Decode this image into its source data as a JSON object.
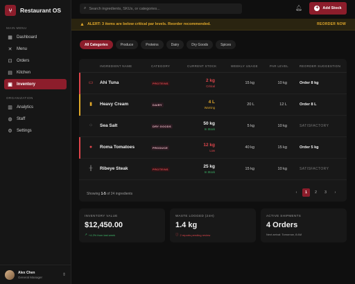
{
  "app": {
    "name": "Restaurant OS"
  },
  "sidebar": {
    "main_menu_label": "MAIN MENU",
    "main_items": [
      {
        "label": "Dashboard",
        "icon": "grid-icon"
      },
      {
        "label": "Menu",
        "icon": "utensils-icon"
      },
      {
        "label": "Orders",
        "icon": "cart-icon"
      },
      {
        "label": "Kitchen",
        "icon": "kitchen-icon"
      },
      {
        "label": "Inventory",
        "icon": "box-icon",
        "active": true
      }
    ],
    "org_label": "ORGANIZATION",
    "org_items": [
      {
        "label": "Analytics",
        "icon": "chart-icon"
      },
      {
        "label": "Staff",
        "icon": "users-icon"
      },
      {
        "label": "Settings",
        "icon": "gear-icon"
      }
    ],
    "user": {
      "name": "Alex Chen",
      "role": "General Manager"
    }
  },
  "topbar": {
    "search_placeholder": "Search ingredients, SKUs, or categories...",
    "add_stock_label": "Add Stock"
  },
  "alert": {
    "text": "ALERT: 3 items are below critical par levels. Reorder recommended.",
    "action": "REORDER NOW"
  },
  "filters": [
    "All Categories",
    "Produce",
    "Proteins",
    "Dairy",
    "Dry Goods",
    "Spices"
  ],
  "table": {
    "headers": [
      "INGREDIENT NAME",
      "CATEGORY",
      "CURRENT STOCK",
      "WEEKLY USAGE",
      "PAR LEVEL",
      "REORDER SUGGESTION"
    ],
    "rows": [
      {
        "name": "Ahi Tuna",
        "category": "PROTEINS",
        "stock": "2 kg",
        "status": "Critical",
        "usage": "15 kg",
        "par": "10 kg",
        "suggestion": "Order 8 kg"
      },
      {
        "name": "Heavy Cream",
        "category": "DAIRY",
        "stock": "4 L",
        "status": "Warning",
        "usage": "20 L",
        "par": "12 L",
        "suggestion": "Order 8 L"
      },
      {
        "name": "Sea Salt",
        "category": "DRY GOODS",
        "stock": "50 kg",
        "status": "In Stock",
        "usage": "5 kg",
        "par": "10 kg",
        "suggestion": "SATISFACTORY"
      },
      {
        "name": "Roma Tomatoes",
        "category": "PRODUCE",
        "stock": "12 kg",
        "status": "Low",
        "usage": "40 kg",
        "par": "15 kg",
        "suggestion": "Order 5 kg"
      },
      {
        "name": "Ribeye Steak",
        "category": "PROTEINS",
        "stock": "25 kg",
        "status": "In Stock",
        "usage": "15 kg",
        "par": "10 kg",
        "suggestion": "SATISFACTORY"
      }
    ],
    "footer_prefix": "Showing ",
    "footer_range": "1-5",
    "footer_suffix": " of 24 ingredients",
    "pages": [
      "‹",
      "1",
      "2",
      "3",
      "›"
    ]
  },
  "stats": [
    {
      "label": "INVENTORY VALUE",
      "value": "$12,450.00",
      "sub": "+4.2% from last week"
    },
    {
      "label": "WASTE LOGGED (24H)",
      "value": "1.4 kg",
      "sub": "2 reports pending review"
    },
    {
      "label": "ACTIVE SHIPMENTS",
      "value": "4 Orders",
      "sub": "Next arrival: Tomorrow, 8 AM"
    }
  ],
  "colors": {
    "accent": "#8c1d2b",
    "critical": "#e0464c",
    "warning": "#e2a92b",
    "ok": "#3fb86a"
  }
}
